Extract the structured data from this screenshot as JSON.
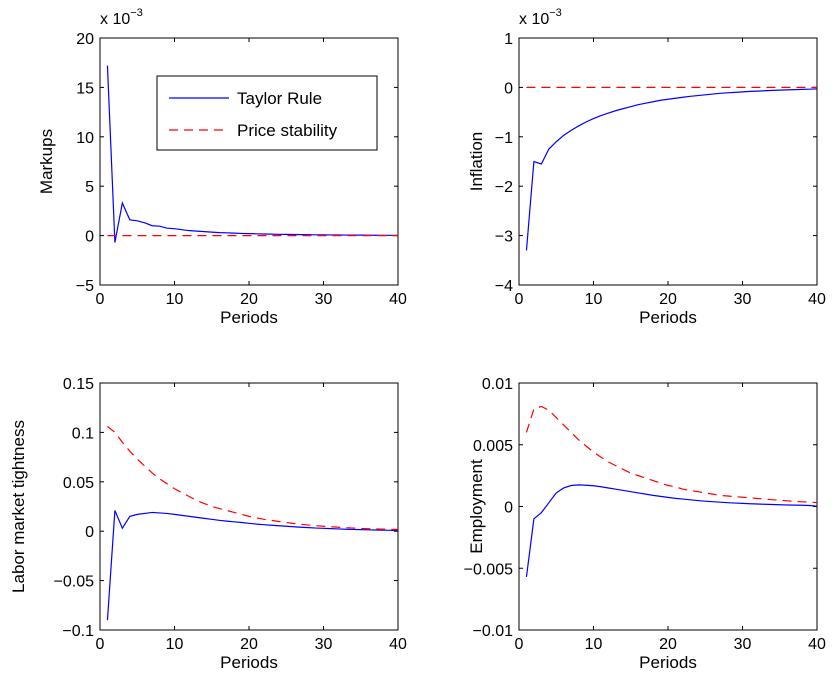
{
  "chart_data": [
    {
      "type": "line",
      "panel": "top-left",
      "title": "",
      "xlabel": "Periods",
      "ylabel": "Markups",
      "exponent_label": "x 10^{-3}",
      "xlim": [
        0,
        40
      ],
      "ylim": [
        -5,
        20
      ],
      "xticks": [
        0,
        10,
        20,
        30,
        40
      ],
      "yticks": [
        -5,
        0,
        5,
        10,
        15,
        20
      ],
      "ytick_labels": [
        "−5",
        "0",
        "5",
        "10",
        "15",
        "20"
      ],
      "grid": false,
      "legend": {
        "placement": "top-right",
        "entries": [
          "Taylor Rule",
          "Price stability"
        ]
      },
      "series": [
        {
          "name": "Taylor Rule",
          "color": "#0000ff",
          "style": "solid",
          "x": [
            1,
            2,
            3,
            4,
            5,
            6,
            7,
            8,
            9,
            10,
            11,
            12,
            13,
            14,
            15,
            16,
            17,
            18,
            19,
            20,
            21,
            22,
            23,
            24,
            25,
            26,
            27,
            28,
            29,
            30,
            31,
            32,
            33,
            34,
            35,
            36,
            37,
            38,
            39,
            40
          ],
          "y": [
            17.2,
            -0.7,
            3.3,
            1.6,
            1.5,
            1.3,
            1.0,
            0.95,
            0.75,
            0.7,
            0.6,
            0.5,
            0.45,
            0.4,
            0.35,
            0.3,
            0.28,
            0.25,
            0.22,
            0.2,
            0.18,
            0.16,
            0.15,
            0.13,
            0.12,
            0.11,
            0.1,
            0.09,
            0.08,
            0.07,
            0.065,
            0.06,
            0.055,
            0.05,
            0.045,
            0.04,
            0.035,
            0.03,
            0.03,
            0.02
          ]
        },
        {
          "name": "Price stability",
          "color": "#ff0000",
          "style": "dashed",
          "x": [
            1,
            40
          ],
          "y": [
            0,
            0
          ]
        }
      ]
    },
    {
      "type": "line",
      "panel": "top-right",
      "title": "",
      "xlabel": "Periods",
      "ylabel": "Inflation",
      "exponent_label": "x 10^{-3}",
      "xlim": [
        0,
        40
      ],
      "ylim": [
        -4,
        1
      ],
      "xticks": [
        0,
        10,
        20,
        30,
        40
      ],
      "yticks": [
        -4,
        -3,
        -2,
        -1,
        0,
        1
      ],
      "ytick_labels": [
        "−4",
        "−3",
        "−2",
        "−1",
        "0",
        "1"
      ],
      "grid": false,
      "series": [
        {
          "name": "Taylor Rule",
          "color": "#0000ff",
          "style": "solid",
          "x": [
            1,
            2,
            3,
            4,
            5,
            6,
            7,
            8,
            9,
            10,
            11,
            12,
            13,
            14,
            15,
            16,
            17,
            18,
            19,
            20,
            21,
            22,
            23,
            24,
            25,
            26,
            27,
            28,
            29,
            30,
            31,
            32,
            33,
            34,
            35,
            36,
            37,
            38,
            39,
            40
          ],
          "y": [
            -3.3,
            -1.5,
            -1.55,
            -1.25,
            -1.1,
            -0.97,
            -0.87,
            -0.78,
            -0.7,
            -0.63,
            -0.57,
            -0.52,
            -0.47,
            -0.43,
            -0.39,
            -0.35,
            -0.32,
            -0.29,
            -0.26,
            -0.24,
            -0.22,
            -0.2,
            -0.18,
            -0.165,
            -0.15,
            -0.135,
            -0.12,
            -0.11,
            -0.1,
            -0.09,
            -0.08,
            -0.075,
            -0.068,
            -0.06,
            -0.055,
            -0.05,
            -0.045,
            -0.04,
            -0.036,
            -0.03
          ]
        },
        {
          "name": "Price stability",
          "color": "#ff0000",
          "style": "dashed",
          "x": [
            1,
            40
          ],
          "y": [
            0,
            0
          ]
        }
      ]
    },
    {
      "type": "line",
      "panel": "bottom-left",
      "title": "",
      "xlabel": "Periods",
      "ylabel": "Labor market tightness",
      "xlim": [
        0,
        40
      ],
      "ylim": [
        -0.1,
        0.15
      ],
      "xticks": [
        0,
        10,
        20,
        30,
        40
      ],
      "yticks": [
        -0.1,
        -0.05,
        0,
        0.05,
        0.1,
        0.15
      ],
      "ytick_labels": [
        "−0.1",
        "−0.05",
        "0",
        "0.05",
        "0.1",
        "0.15"
      ],
      "grid": false,
      "series": [
        {
          "name": "Taylor Rule",
          "color": "#0000ff",
          "style": "solid",
          "x": [
            1,
            2,
            3,
            4,
            5,
            6,
            7,
            8,
            9,
            10,
            11,
            12,
            13,
            14,
            15,
            16,
            17,
            18,
            19,
            20,
            21,
            22,
            23,
            24,
            25,
            26,
            27,
            28,
            29,
            30,
            31,
            32,
            33,
            34,
            35,
            36,
            37,
            38,
            39,
            40
          ],
          "y": [
            -0.09,
            0.021,
            0.003,
            0.015,
            0.017,
            0.018,
            0.019,
            0.0185,
            0.018,
            0.017,
            0.016,
            0.015,
            0.014,
            0.013,
            0.012,
            0.011,
            0.0102,
            0.0095,
            0.0088,
            0.008,
            0.0072,
            0.0066,
            0.006,
            0.0055,
            0.005,
            0.0045,
            0.004,
            0.0036,
            0.0032,
            0.0029,
            0.0026,
            0.0023,
            0.002,
            0.0018,
            0.0016,
            0.0014,
            0.0012,
            0.001,
            0.0009,
            0.0007
          ]
        },
        {
          "name": "Price stability",
          "color": "#ff0000",
          "style": "dashed",
          "x": [
            1,
            2,
            3,
            4,
            5,
            6,
            7,
            8,
            9,
            10,
            11,
            12,
            13,
            14,
            15,
            16,
            17,
            18,
            19,
            20,
            21,
            22,
            23,
            24,
            25,
            26,
            27,
            28,
            29,
            30,
            31,
            32,
            33,
            34,
            35,
            36,
            37,
            38,
            39,
            40
          ],
          "y": [
            0.106,
            0.1,
            0.09,
            0.081,
            0.073,
            0.066,
            0.059,
            0.053,
            0.048,
            0.043,
            0.039,
            0.035,
            0.031,
            0.028,
            0.025,
            0.023,
            0.021,
            0.019,
            0.017,
            0.015,
            0.0135,
            0.012,
            0.011,
            0.0098,
            0.0088,
            0.0078,
            0.007,
            0.0062,
            0.0056,
            0.005,
            0.0045,
            0.004,
            0.0036,
            0.0032,
            0.0028,
            0.0025,
            0.0023,
            0.0021,
            0.0019,
            0.0017
          ]
        }
      ]
    },
    {
      "type": "line",
      "panel": "bottom-right",
      "title": "",
      "xlabel": "Periods",
      "ylabel": "Employment",
      "xlim": [
        0,
        40
      ],
      "ylim": [
        -0.01,
        0.01
      ],
      "xticks": [
        0,
        10,
        20,
        30,
        40
      ],
      "yticks": [
        -0.01,
        -0.005,
        0,
        0.005,
        0.01
      ],
      "ytick_labels": [
        "−0.01",
        "−0.005",
        "0",
        "0.005",
        "0.01"
      ],
      "grid": false,
      "series": [
        {
          "name": "Taylor Rule",
          "color": "#0000ff",
          "style": "solid",
          "x": [
            1,
            2,
            3,
            4,
            5,
            6,
            7,
            8,
            9,
            10,
            11,
            12,
            13,
            14,
            15,
            16,
            17,
            18,
            19,
            20,
            21,
            22,
            23,
            24,
            25,
            26,
            27,
            28,
            29,
            30,
            31,
            32,
            33,
            34,
            35,
            36,
            37,
            38,
            39,
            40
          ],
          "y": [
            -0.0057,
            -0.001,
            -0.0005,
            0.0003,
            0.0011,
            0.0015,
            0.0017,
            0.00175,
            0.00172,
            0.00168,
            0.0016,
            0.0015,
            0.0014,
            0.0013,
            0.0012,
            0.0011,
            0.001,
            0.0009,
            0.00082,
            0.00074,
            0.00066,
            0.0006,
            0.00054,
            0.00048,
            0.00043,
            0.00039,
            0.00035,
            0.00031,
            0.00028,
            0.00025,
            0.00022,
            0.0002,
            0.00018,
            0.00016,
            0.00014,
            0.00012,
            0.00011,
            0.0001,
            8e-05,
            2e-05
          ]
        },
        {
          "name": "Price stability",
          "color": "#ff0000",
          "style": "dashed",
          "x": [
            1,
            2,
            3,
            4,
            5,
            6,
            7,
            8,
            9,
            10,
            11,
            12,
            13,
            14,
            15,
            16,
            17,
            18,
            19,
            20,
            21,
            22,
            23,
            24,
            25,
            26,
            27,
            28,
            29,
            30,
            31,
            32,
            33,
            34,
            35,
            36,
            37,
            38,
            39,
            40
          ],
          "y": [
            0.006,
            0.0079,
            0.0081,
            0.0078,
            0.0072,
            0.0066,
            0.006,
            0.0054,
            0.0049,
            0.0044,
            0.004,
            0.0036,
            0.0033,
            0.003,
            0.0027,
            0.0025,
            0.0023,
            0.0021,
            0.0019,
            0.0017,
            0.0016,
            0.0014,
            0.0013,
            0.0012,
            0.0011,
            0.001,
            0.0009,
            0.00085,
            0.0008,
            0.00075,
            0.0007,
            0.00065,
            0.0006,
            0.00055,
            0.0005,
            0.00046,
            0.00042,
            0.00038,
            0.00035,
            0.00032
          ]
        }
      ]
    }
  ]
}
